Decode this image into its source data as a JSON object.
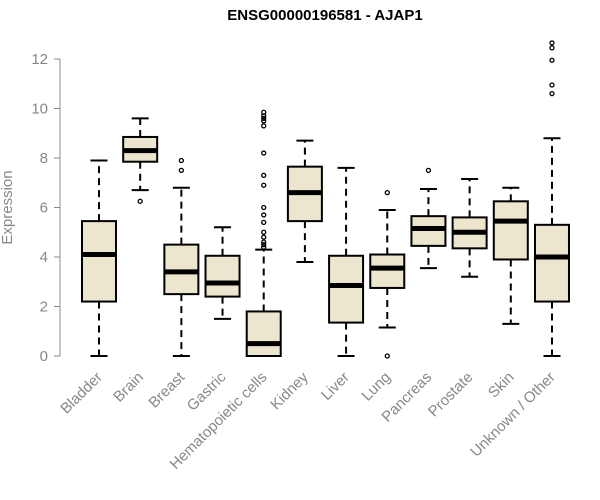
{
  "chart_data": {
    "type": "boxplot",
    "title": "ENSG00000196581 - AJAP1",
    "xlabel": "",
    "ylabel": "Expression",
    "ylim": [
      0,
      12
    ],
    "yticks": [
      0,
      2,
      4,
      6,
      8,
      10,
      12
    ],
    "box_color": "#ede6cf",
    "categories": [
      "Bladder",
      "Brain",
      "Breast",
      "Gastric",
      "Hematopoietic cells",
      "Kidney",
      "Liver",
      "Lung",
      "Pancreas",
      "Prostate",
      "Skin",
      "Unknown / Other"
    ],
    "boxes": [
      {
        "min": 0.0,
        "q1": 2.2,
        "median": 4.1,
        "q3": 5.45,
        "max": 7.9,
        "outliers": []
      },
      {
        "min": 6.7,
        "q1": 7.85,
        "median": 8.3,
        "q3": 8.85,
        "max": 9.6,
        "outliers": [
          6.25
        ]
      },
      {
        "min": 0.0,
        "q1": 2.5,
        "median": 3.4,
        "q3": 4.5,
        "max": 6.8,
        "outliers": [
          7.5,
          7.9
        ]
      },
      {
        "min": 1.5,
        "q1": 2.4,
        "median": 2.95,
        "q3": 4.05,
        "max": 5.2,
        "outliers": []
      },
      {
        "min": 0.0,
        "q1": 0.0,
        "median": 0.5,
        "q3": 1.8,
        "max": 4.3,
        "outliers": [
          4.4,
          4.5,
          4.6,
          4.8,
          5.0,
          5.4,
          5.7,
          6.0,
          6.9,
          7.3,
          8.2,
          9.3,
          9.5,
          9.6,
          9.7,
          9.85
        ]
      },
      {
        "min": 3.8,
        "q1": 5.45,
        "median": 6.6,
        "q3": 7.65,
        "max": 8.7,
        "outliers": []
      },
      {
        "min": 0.0,
        "q1": 1.35,
        "median": 2.85,
        "q3": 4.05,
        "max": 7.6,
        "outliers": []
      },
      {
        "min": 1.15,
        "q1": 2.75,
        "median": 3.55,
        "q3": 4.1,
        "max": 5.9,
        "outliers": [
          6.6,
          0.0
        ]
      },
      {
        "min": 3.55,
        "q1": 4.45,
        "median": 5.15,
        "q3": 5.65,
        "max": 6.75,
        "outliers": [
          7.5
        ]
      },
      {
        "min": 3.2,
        "q1": 4.35,
        "median": 5.0,
        "q3": 5.6,
        "max": 7.15,
        "outliers": []
      },
      {
        "min": 1.3,
        "q1": 3.9,
        "median": 5.45,
        "q3": 6.25,
        "max": 6.8,
        "outliers": []
      },
      {
        "min": 0.0,
        "q1": 2.2,
        "median": 4.0,
        "q3": 5.3,
        "max": 8.8,
        "outliers": [
          10.6,
          10.95,
          11.95,
          12.45,
          12.65
        ]
      }
    ]
  }
}
